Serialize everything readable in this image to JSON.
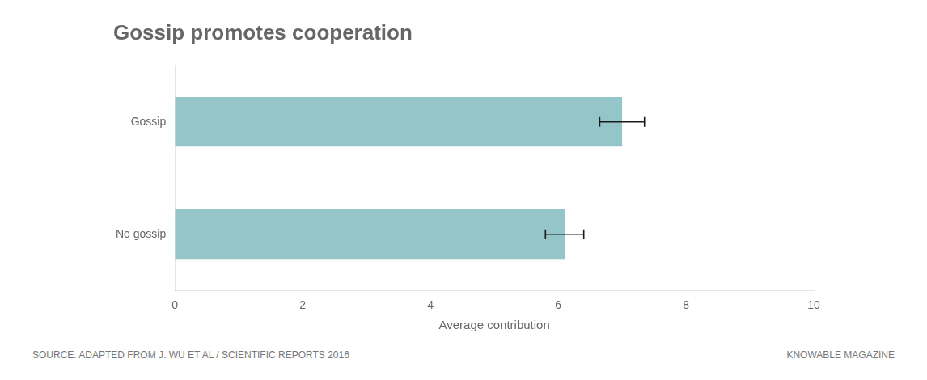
{
  "chart_data": {
    "type": "bar",
    "orientation": "horizontal",
    "title": "Gossip promotes cooperation",
    "categories": [
      "Gossip",
      "No gossip"
    ],
    "values": [
      7.0,
      6.1
    ],
    "errors": [
      0.35,
      0.3
    ],
    "color": "#94c5c8",
    "xlim": [
      0,
      10
    ],
    "xticks": [
      0,
      2,
      4,
      6,
      8,
      10
    ],
    "xlabel": "Average contribution",
    "grid": false,
    "annotations": [
      "SOURCE: ADAPTED FROM J. WU ET AL / SCIENTIFIC REPORTS 2016",
      "KNOWABLE MAGAZINE"
    ]
  }
}
